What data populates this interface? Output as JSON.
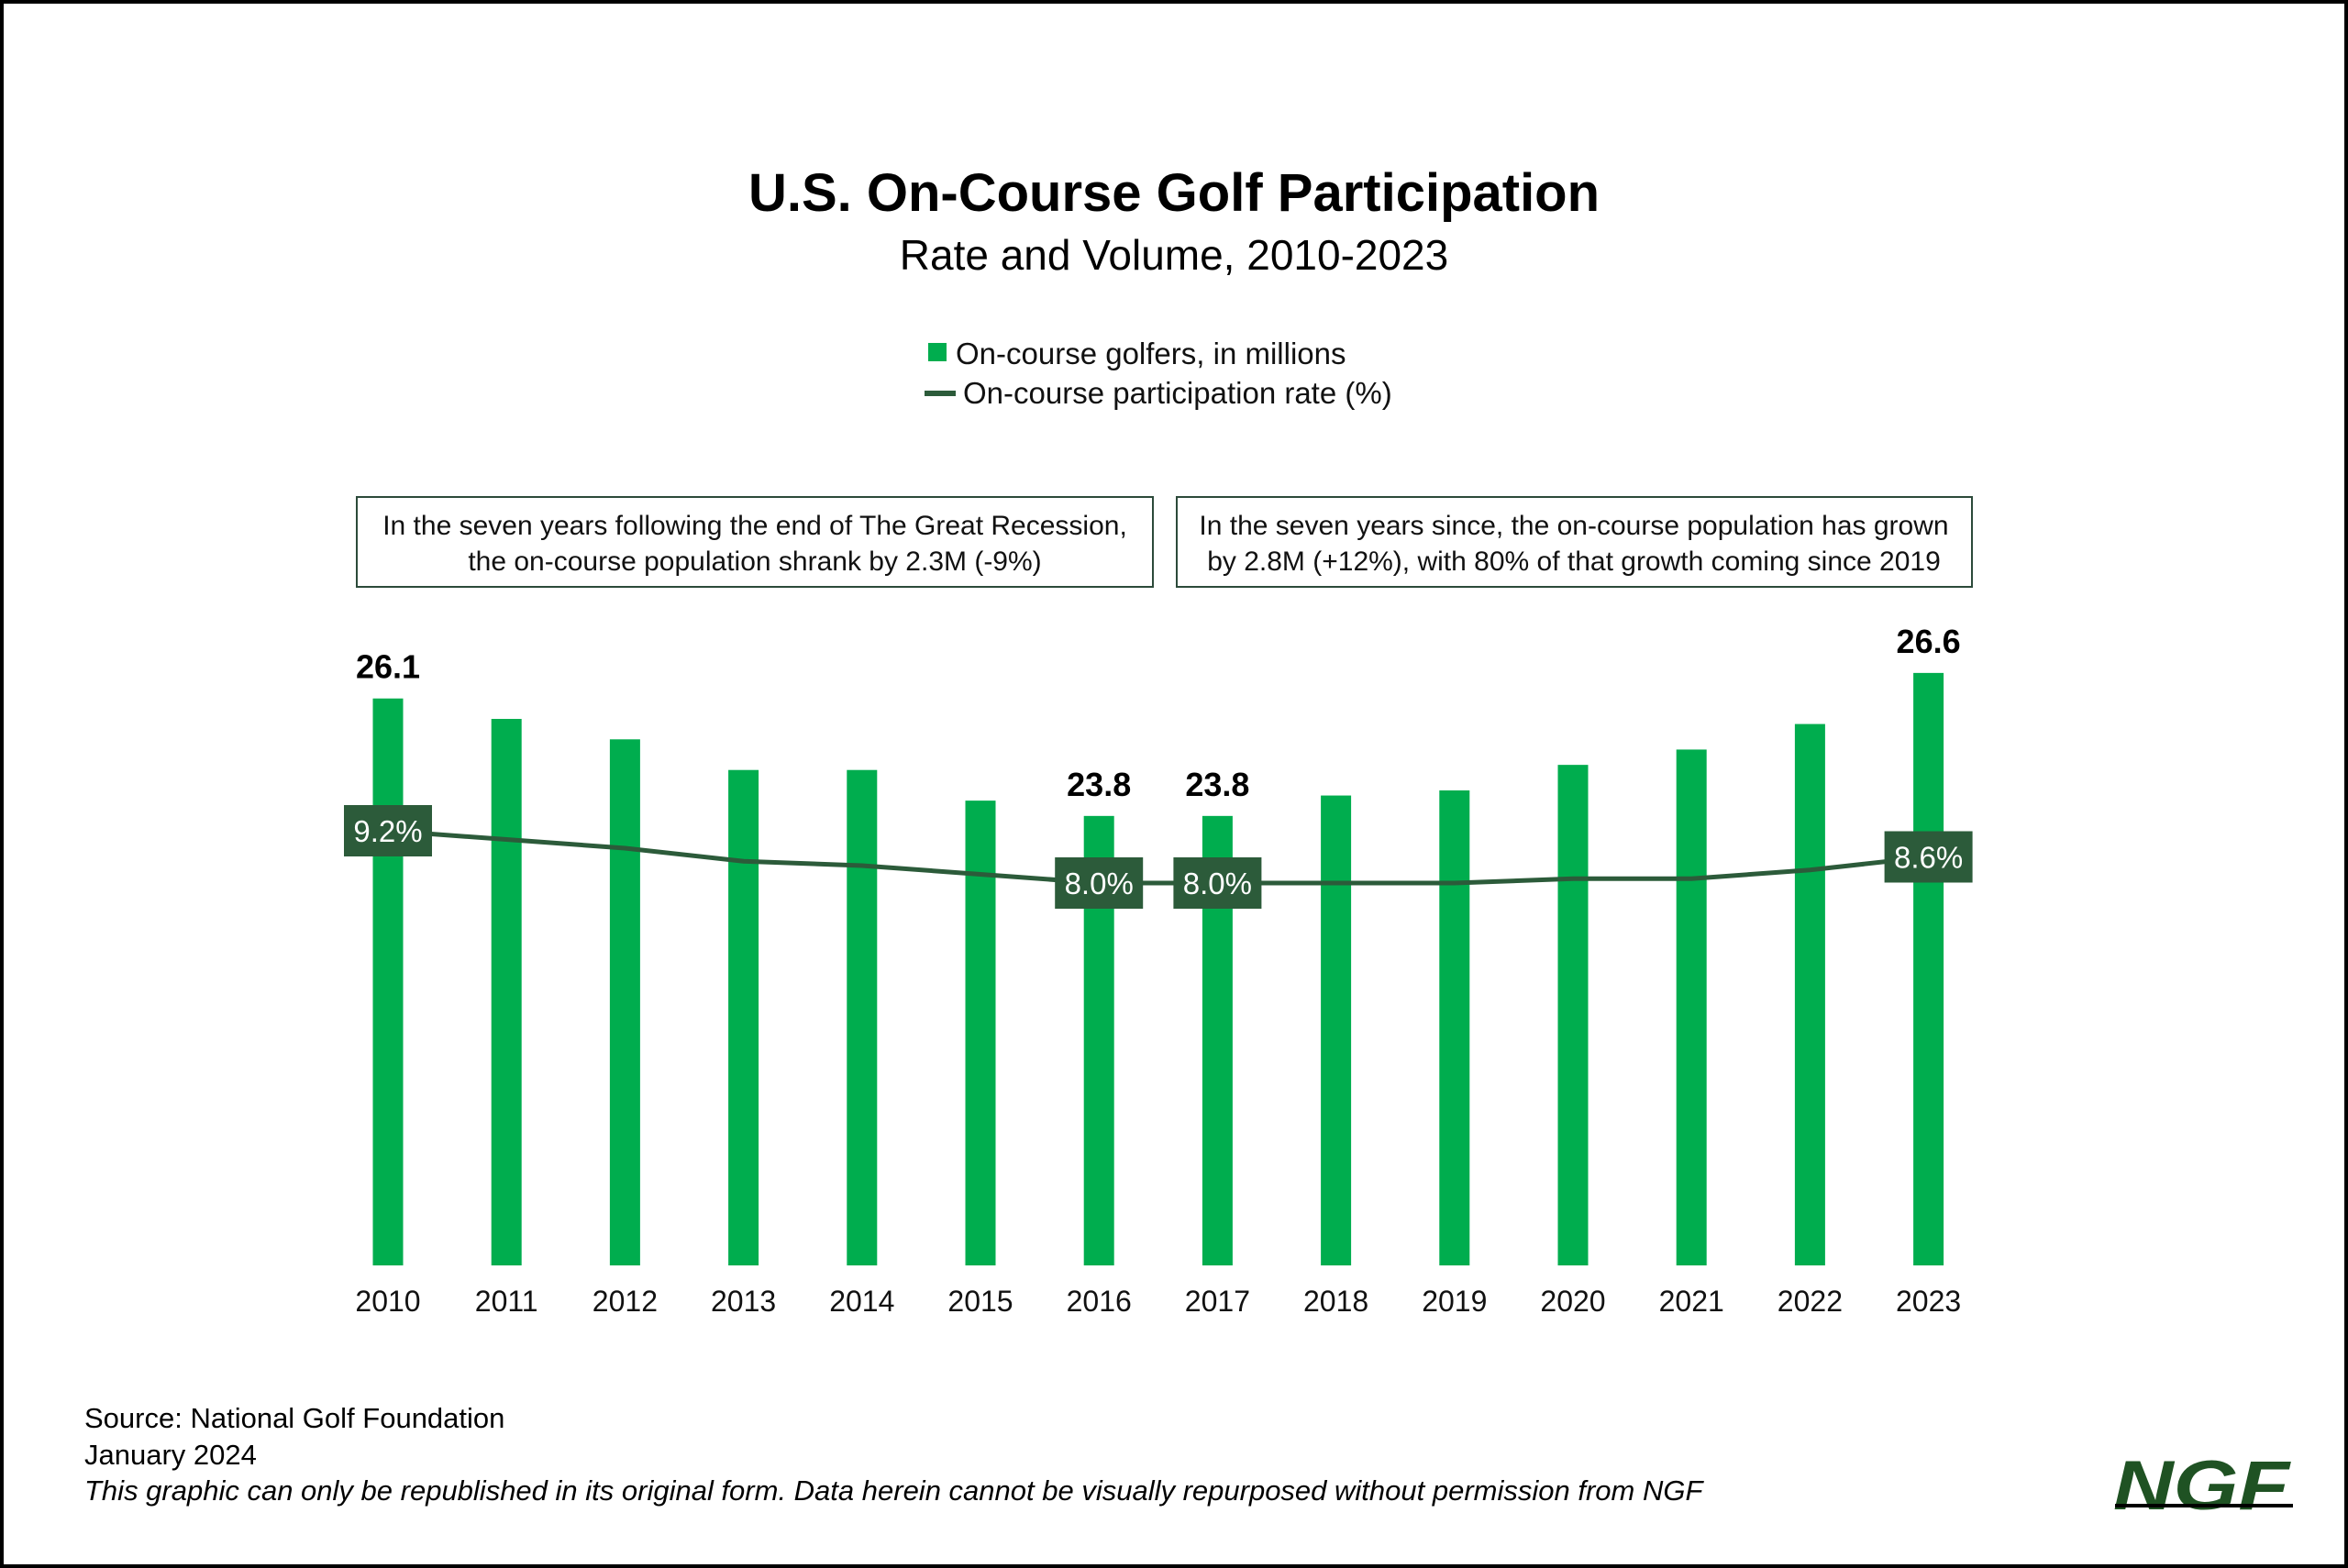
{
  "chart_data": {
    "type": "bar",
    "title": "U.S. On-Course Golf Participation",
    "subtitle": "Rate and Volume, 2010-2023",
    "categories": [
      "2010",
      "2011",
      "2012",
      "2013",
      "2014",
      "2015",
      "2016",
      "2017",
      "2018",
      "2019",
      "2020",
      "2021",
      "2022",
      "2023"
    ],
    "series": [
      {
        "name": "On-course golfers, in millions",
        "type": "bar",
        "color": "#00AD4E",
        "values": [
          26.1,
          25.7,
          25.3,
          24.7,
          24.7,
          24.1,
          23.8,
          23.8,
          24.2,
          24.3,
          24.8,
          25.1,
          25.6,
          26.6
        ],
        "labels": {
          "2010": "26.1",
          "2016": "23.8",
          "2017": "23.8",
          "2023": "26.6"
        }
      },
      {
        "name": "On-course participation rate (%)",
        "type": "line",
        "color": "#2C5B3A",
        "values": [
          9.2,
          9.0,
          8.8,
          8.5,
          8.4,
          8.2,
          8.0,
          8.0,
          8.0,
          8.0,
          8.1,
          8.1,
          8.3,
          8.6
        ],
        "labels": {
          "2010": "9.2%",
          "2016": "8.0%",
          "2017": "8.0%",
          "2023": "8.6%"
        }
      }
    ],
    "ylim": [
      15,
      27.5
    ],
    "grid": false,
    "legend": "top-center",
    "annotations": [
      "In the seven years following the end of The Great Recession, the on-course population shrank by 2.3M (-9%)",
      "In the seven years since, the on-course population has grown by 2.8M (+12%), with 80% of that growth coming since 2019"
    ]
  },
  "annotation_lines": [
    [
      "In the seven years following the end of The Great Recession,",
      "the on-course population shrank by 2.3M (-9%)"
    ],
    [
      "In the seven years since, the on-course population has grown",
      "by 2.8M (+12%), with 80% of that growth coming since 2019"
    ]
  ],
  "footer": {
    "source_label": "Source",
    "source": ": National Golf Foundation",
    "date": "January 2024",
    "note": "This graphic can only be republished in its original form. Data herein cannot be visually repurposed without permission from NGF"
  },
  "logo": "NGF"
}
